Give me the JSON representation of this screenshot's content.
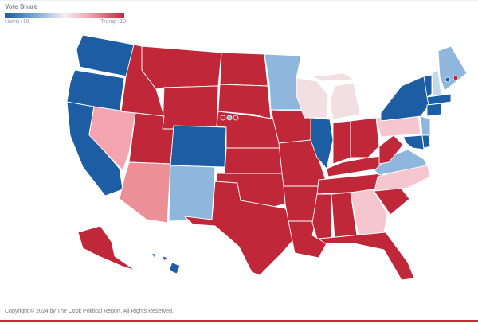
{
  "legend": {
    "title": "Vote Share",
    "left_label": "Harris+10",
    "right_label": "Trump+10",
    "left_color": "#1c5aa1",
    "right_color": "#c0283a"
  },
  "footer": "Copyright © 2024 by The Cook Political Report. All Rights Reserved.",
  "colors": {
    "harris_strong": "#1d5da3",
    "harris_lean": "#8fb6dd",
    "harris_light": "#c4d8ec",
    "tossup_light": "#f2dfe3",
    "trump_light": "#f6c6cf",
    "trump_lean": "#f3a4b0",
    "trump_mid": "#ec8f96",
    "trump_strong": "#c0283a",
    "border": "#ffffff",
    "footer_rule": "#d8203b"
  },
  "states": [
    {
      "code": "WA",
      "color": "harris_strong"
    },
    {
      "code": "OR",
      "color": "harris_strong"
    },
    {
      "code": "CA",
      "color": "harris_strong"
    },
    {
      "code": "NV",
      "color": "trump_lean"
    },
    {
      "code": "ID",
      "color": "trump_strong"
    },
    {
      "code": "MT",
      "color": "trump_strong"
    },
    {
      "code": "WY",
      "color": "trump_strong"
    },
    {
      "code": "UT",
      "color": "trump_strong"
    },
    {
      "code": "AZ",
      "color": "trump_mid"
    },
    {
      "code": "CO",
      "color": "harris_strong"
    },
    {
      "code": "NM",
      "color": "harris_lean"
    },
    {
      "code": "ND",
      "color": "trump_strong"
    },
    {
      "code": "SD",
      "color": "trump_strong"
    },
    {
      "code": "NE",
      "color": "trump_strong"
    },
    {
      "code": "KS",
      "color": "trump_strong"
    },
    {
      "code": "OK",
      "color": "trump_strong"
    },
    {
      "code": "TX",
      "color": "trump_strong"
    },
    {
      "code": "MN",
      "color": "harris_lean"
    },
    {
      "code": "IA",
      "color": "trump_strong"
    },
    {
      "code": "MO",
      "color": "trump_strong"
    },
    {
      "code": "AR",
      "color": "trump_strong"
    },
    {
      "code": "LA",
      "color": "trump_strong"
    },
    {
      "code": "WI",
      "color": "tossup_light"
    },
    {
      "code": "MI",
      "color": "tossup_light"
    },
    {
      "code": "IL",
      "color": "harris_strong"
    },
    {
      "code": "IN",
      "color": "trump_strong"
    },
    {
      "code": "OH",
      "color": "trump_strong"
    },
    {
      "code": "KY",
      "color": "trump_strong"
    },
    {
      "code": "TN",
      "color": "trump_strong"
    },
    {
      "code": "MS",
      "color": "trump_strong"
    },
    {
      "code": "AL",
      "color": "trump_strong"
    },
    {
      "code": "GA",
      "color": "trump_light"
    },
    {
      "code": "FL",
      "color": "trump_strong"
    },
    {
      "code": "SC",
      "color": "trump_strong"
    },
    {
      "code": "NC",
      "color": "trump_light"
    },
    {
      "code": "VA",
      "color": "harris_lean"
    },
    {
      "code": "WV",
      "color": "trump_strong"
    },
    {
      "code": "PA",
      "color": "trump_light"
    },
    {
      "code": "NY",
      "color": "harris_strong"
    },
    {
      "code": "VT",
      "color": "harris_strong"
    },
    {
      "code": "NH",
      "color": "harris_light"
    },
    {
      "code": "ME",
      "color": "harris_lean"
    },
    {
      "code": "MA",
      "color": "harris_strong"
    },
    {
      "code": "CT",
      "color": "harris_strong"
    },
    {
      "code": "NJ",
      "color": "harris_lean"
    },
    {
      "code": "MD",
      "color": "harris_strong"
    },
    {
      "code": "DE",
      "color": "harris_strong"
    },
    {
      "code": "AK",
      "color": "trump_strong"
    },
    {
      "code": "HI",
      "color": "harris_strong"
    }
  ],
  "district_markers": [
    {
      "id": "NE-2",
      "color": "harris_lean"
    },
    {
      "id": "NE-1",
      "color": "trump_strong"
    },
    {
      "id": "NE-3",
      "color": "trump_strong"
    },
    {
      "id": "ME-2",
      "color": "trump_strong"
    },
    {
      "id": "ME-1",
      "color": "harris_strong"
    }
  ]
}
